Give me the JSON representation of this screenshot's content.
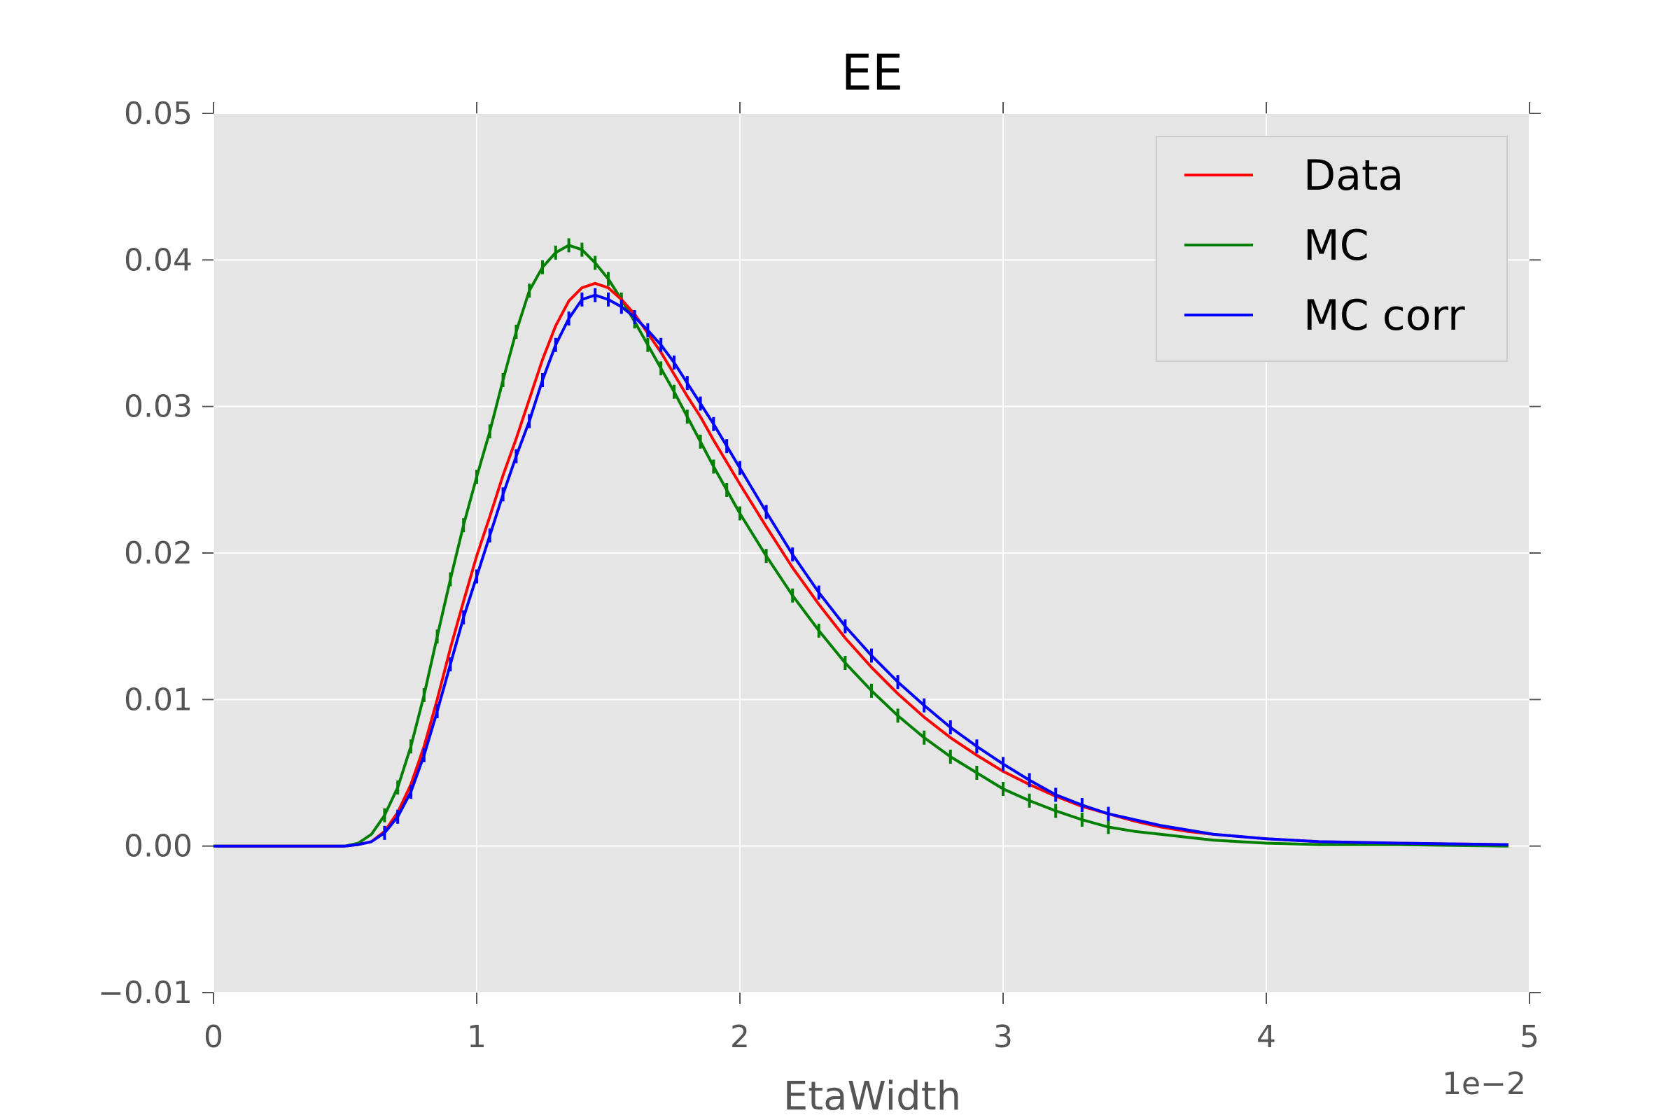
{
  "chart_data": {
    "type": "line",
    "title": "EE",
    "xlabel": "EtaWidth",
    "ylabel": "",
    "x_offset_label": "1e−2",
    "xlim": [
      0,
      5
    ],
    "ylim": [
      -0.01,
      0.05
    ],
    "x_ticks": [
      0,
      1,
      2,
      3,
      4,
      5
    ],
    "x_tick_labels": [
      "0",
      "1",
      "2",
      "3",
      "4",
      "5"
    ],
    "y_ticks": [
      -0.01,
      0,
      0.01,
      0.02,
      0.03,
      0.04,
      0.05
    ],
    "y_tick_labels": [
      "−0.01",
      "0.00",
      "0.01",
      "0.02",
      "0.03",
      "0.04",
      "0.05"
    ],
    "grid": true,
    "legend_position": "top-right",
    "background_color": "#e5e5e5",
    "x": [
      0.0,
      0.5,
      0.55,
      0.6,
      0.65,
      0.7,
      0.75,
      0.8,
      0.85,
      0.9,
      0.95,
      1.0,
      1.05,
      1.1,
      1.15,
      1.2,
      1.25,
      1.3,
      1.35,
      1.4,
      1.45,
      1.5,
      1.55,
      1.6,
      1.65,
      1.7,
      1.75,
      1.8,
      1.85,
      1.9,
      1.95,
      2.0,
      2.1,
      2.2,
      2.3,
      2.4,
      2.5,
      2.6,
      2.7,
      2.8,
      2.9,
      3.0,
      3.1,
      3.2,
      3.3,
      3.4,
      3.5,
      3.6,
      3.7,
      3.8,
      4.0,
      4.2,
      4.5,
      4.92
    ],
    "series": [
      {
        "name": "Data",
        "color": "#ff0000",
        "values": [
          0.0,
          0.0,
          0.0001,
          0.0003,
          0.001,
          0.0023,
          0.0042,
          0.0068,
          0.01,
          0.0135,
          0.0167,
          0.0198,
          0.0225,
          0.0253,
          0.0278,
          0.0305,
          0.0332,
          0.0355,
          0.0372,
          0.0381,
          0.0384,
          0.0381,
          0.0373,
          0.0363,
          0.035,
          0.0337,
          0.0322,
          0.0307,
          0.0293,
          0.0277,
          0.0262,
          0.0247,
          0.0218,
          0.019,
          0.0165,
          0.0142,
          0.0122,
          0.0104,
          0.0088,
          0.0074,
          0.0062,
          0.0051,
          0.0042,
          0.0034,
          0.0027,
          0.0022,
          0.0017,
          0.0013,
          0.001,
          0.0008,
          0.0005,
          0.0003,
          0.0002,
          0.0001
        ]
      },
      {
        "name": "MC",
        "color": "#007f00",
        "values": [
          0.0,
          0.0,
          0.0002,
          0.0008,
          0.0021,
          0.004,
          0.0068,
          0.0103,
          0.0143,
          0.0182,
          0.0219,
          0.0252,
          0.0283,
          0.0318,
          0.0351,
          0.0379,
          0.0395,
          0.0405,
          0.041,
          0.0407,
          0.0398,
          0.0387,
          0.0373,
          0.0358,
          0.0342,
          0.0326,
          0.031,
          0.0293,
          0.0276,
          0.0259,
          0.0243,
          0.0227,
          0.0198,
          0.0171,
          0.0147,
          0.0125,
          0.0106,
          0.0089,
          0.0074,
          0.0061,
          0.005,
          0.0039,
          0.0031,
          0.0024,
          0.0018,
          0.0013,
          0.001,
          0.0008,
          0.0006,
          0.0004,
          0.0002,
          0.0001,
          0.0001,
          0.0
        ]
      },
      {
        "name": "MC corr",
        "color": "#0000ff",
        "values": [
          0.0,
          0.0,
          0.0001,
          0.0003,
          0.0009,
          0.002,
          0.0037,
          0.0062,
          0.0092,
          0.0124,
          0.0156,
          0.0184,
          0.0212,
          0.024,
          0.0266,
          0.029,
          0.0318,
          0.0342,
          0.036,
          0.0373,
          0.0376,
          0.0373,
          0.0368,
          0.0361,
          0.0352,
          0.0342,
          0.033,
          0.0316,
          0.0302,
          0.0288,
          0.0273,
          0.0258,
          0.0228,
          0.0199,
          0.0173,
          0.015,
          0.013,
          0.0112,
          0.0096,
          0.0081,
          0.0068,
          0.0056,
          0.0045,
          0.0035,
          0.0028,
          0.0022,
          0.0018,
          0.0014,
          0.0011,
          0.0008,
          0.0005,
          0.0003,
          0.0002,
          0.0001
        ]
      }
    ]
  }
}
